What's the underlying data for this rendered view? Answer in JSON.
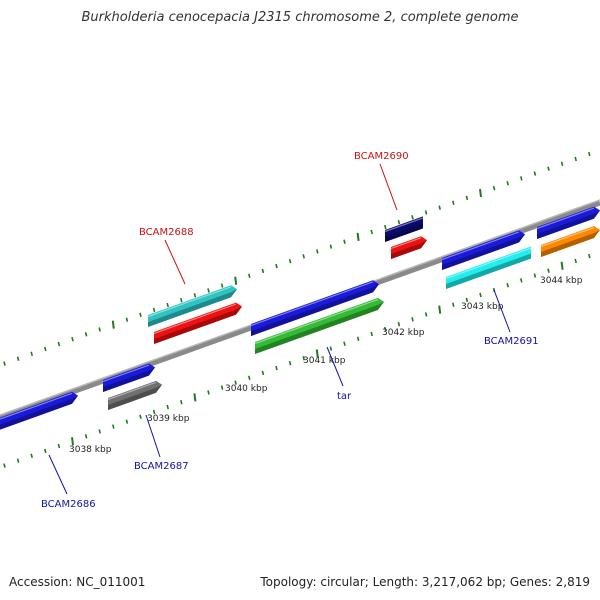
{
  "title": "Burkholderia cenocepacia J2315 chromosome 2, complete genome",
  "footer": {
    "accession": "Accession: NC_011001",
    "summary": "Topology: circular; Length: 3,217,062 bp; Genes: 2,819"
  },
  "colors": {
    "backbone": "#8a8a8a",
    "tick": "#1e7a1e",
    "label_upper": "#cc1111",
    "label_lower": "#1111aa",
    "kbp_text": "#222222"
  },
  "kbp_ticks": [
    "3038 kbp",
    "3039 kbp",
    "3040 kbp",
    "3041 kbp",
    "3042 kbp",
    "3043 kbp",
    "3044 kbp"
  ],
  "gene_labels": [
    {
      "text": "BCAM2686",
      "group": "lower"
    },
    {
      "text": "BCAM2687",
      "group": "lower"
    },
    {
      "text": "BCAM2688",
      "group": "upper"
    },
    {
      "text": "tar",
      "group": "lower"
    },
    {
      "text": "BCAM2690",
      "group": "upper"
    },
    {
      "text": "BCAM2691",
      "group": "lower"
    }
  ],
  "genes": [
    {
      "id": "g1",
      "color": "#1a1adb"
    },
    {
      "id": "g2",
      "color": "#1a1adb"
    },
    {
      "id": "g3",
      "color": "#707070"
    },
    {
      "id": "g4",
      "color": "#2ec4c4"
    },
    {
      "id": "g5",
      "color": "#ee1111"
    },
    {
      "id": "g6",
      "color": "#1a1adb"
    },
    {
      "id": "g7",
      "color": "#33bb33"
    },
    {
      "id": "g8",
      "color": "#0a0a70"
    },
    {
      "id": "g9",
      "color": "#ee1111"
    },
    {
      "id": "g10",
      "color": "#1a1adb"
    },
    {
      "id": "g11",
      "color": "#22eeee"
    },
    {
      "id": "g12",
      "color": "#1a1adb"
    },
    {
      "id": "g13",
      "color": "#ff8800"
    }
  ]
}
